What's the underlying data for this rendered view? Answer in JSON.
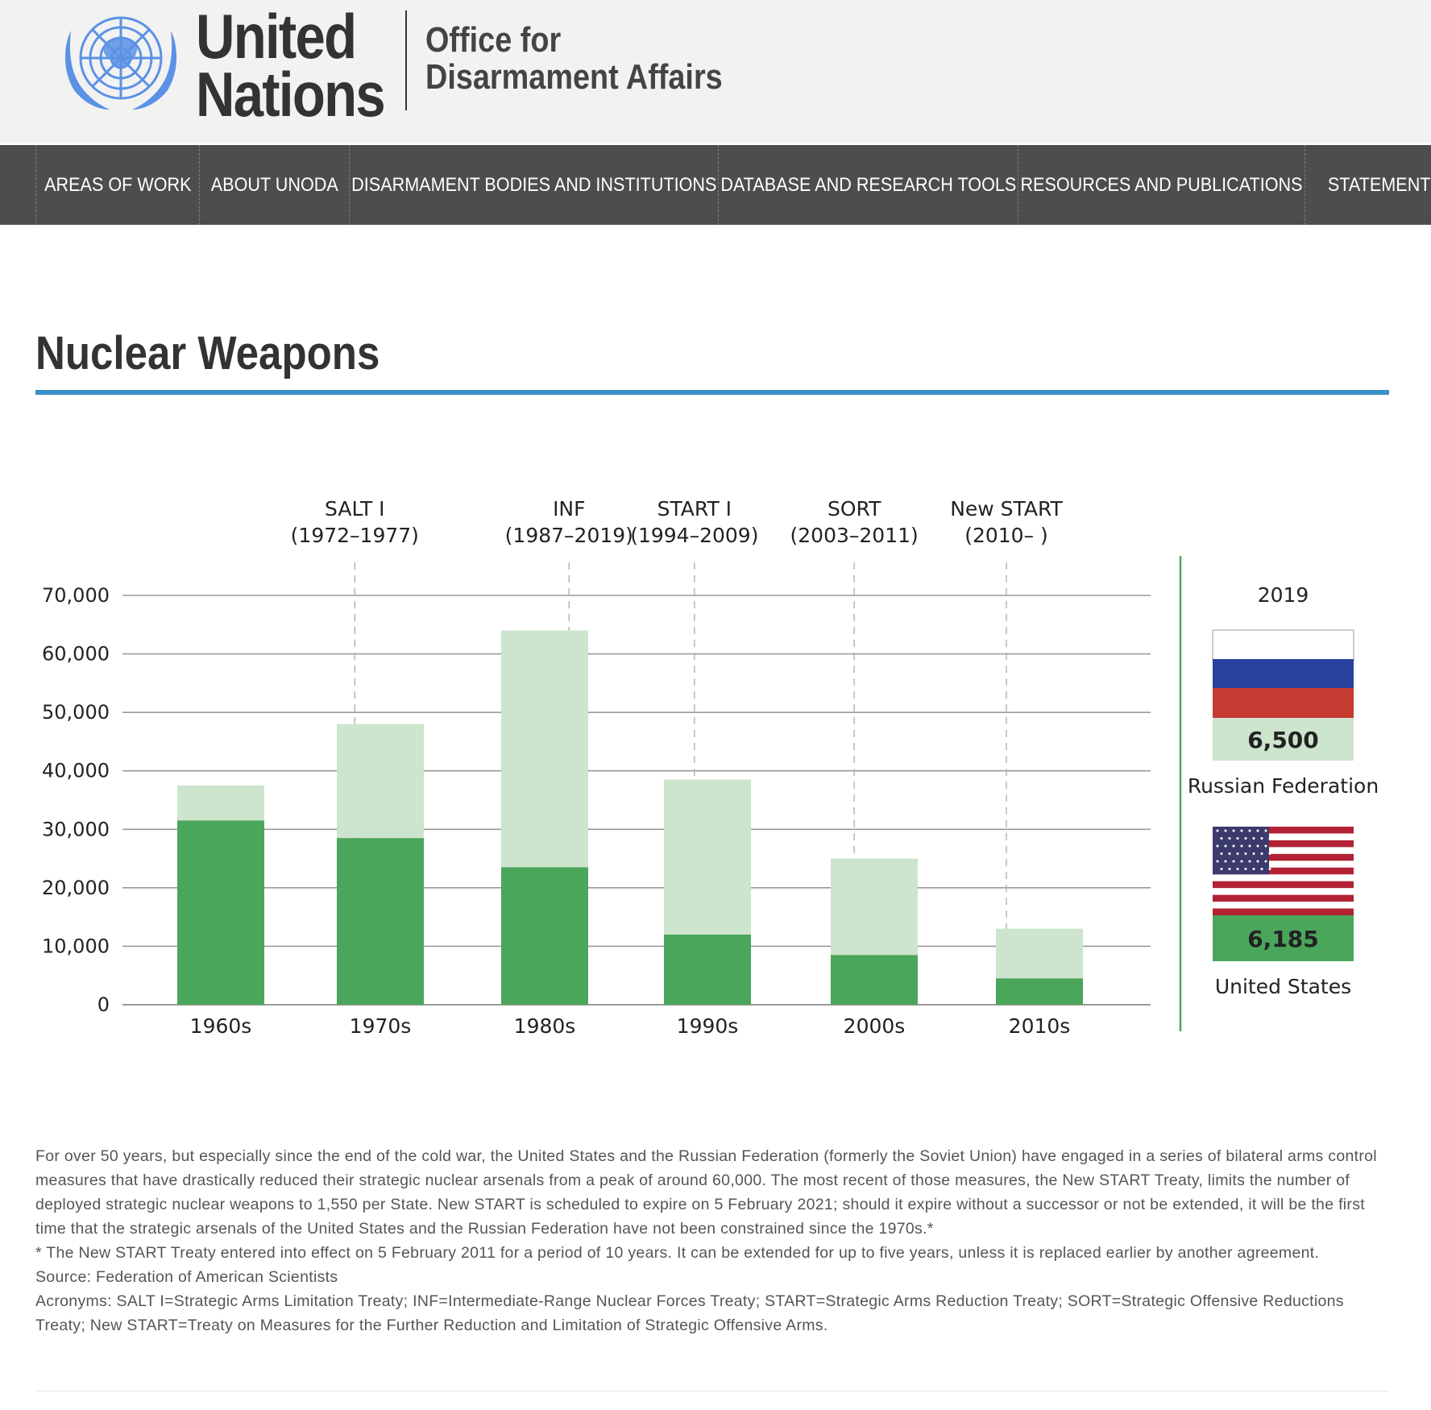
{
  "header": {
    "org_line1": "United",
    "org_line2": "Nations",
    "office_line1": "Office for",
    "office_line2": "Disarmament Affairs"
  },
  "nav": {
    "items": [
      {
        "label": "AREAS OF WORK"
      },
      {
        "label": "ABOUT UNODA"
      },
      {
        "label": "DISARMAMENT BODIES AND INSTITUTIONS"
      },
      {
        "label": "DATABASE AND RESEARCH TOOLS"
      },
      {
        "label": "RESOURCES AND PUBLICATIONS"
      },
      {
        "label": "STATEMENTS"
      }
    ]
  },
  "page": {
    "title": "Nuclear Weapons"
  },
  "colors": {
    "title_rule": "#3a8fc8",
    "dark_green": "#4aa65a",
    "light_green": "#cde4cd",
    "nav_bg": "#4d4d4d"
  },
  "chart_data": {
    "type": "bar",
    "stacked": true,
    "categories": [
      "1960s",
      "1970s",
      "1980s",
      "1990s",
      "2000s",
      "2010s"
    ],
    "series": [
      {
        "values": [
          31500,
          28500,
          23500,
          12000,
          8500,
          4500
        ]
      },
      {
        "values": [
          6000,
          19500,
          40500,
          26500,
          16500,
          8500
        ]
      }
    ],
    "yticks": [
      "70,000",
      "60,000",
      "50,000",
      "40,000",
      "30,000",
      "20,000",
      "10,000",
      "0"
    ],
    "ylim": [
      0,
      70000
    ],
    "grid": true,
    "treaties": [
      {
        "name": "SALT  I",
        "years": "(1972–1977)",
        "position": 1.84
      },
      {
        "name": "INF",
        "years": "(1987–2019)",
        "position": 3.15
      },
      {
        "name": "START I",
        "years": "(1994–2009)",
        "position": 3.92
      },
      {
        "name": "SORT",
        "years": "(2003–2011)",
        "position": 4.88
      },
      {
        "name": "New START",
        "years": "(2010– )",
        "position": 5.8
      }
    ],
    "panel_2019": {
      "year": "2019",
      "russia": {
        "value": "6,500",
        "name": "Russian Federation"
      },
      "usa": {
        "value": "6,185",
        "name": "United States"
      }
    }
  },
  "body": {
    "paragraph": "For over 50 years, but especially since the end of the cold war, the United States and the Russian Federation (formerly the Soviet Union) have engaged in a series of bilateral arms control measures that have drastically reduced their strategic nuclear arsenals from a peak of around 60,000. The most recent of those measures, the New START Treaty, limits the number of deployed strategic nuclear weapons to 1,550 per State. New START is scheduled to expire on 5 February 2021; should it expire without a successor or not be extended, it will be the first time that the strategic arsenals of the United States and the Russian Federation have not been constrained since the 1970s.*",
    "footnote": "* The New START Treaty entered into effect on 5 February 2011 for a period of 10 years. It can be extended for up to five years, unless it is replaced earlier by another agreement.",
    "source": "Source: Federation of American Scientists",
    "acronyms": "Acronyms: SALT I=Strategic Arms Limitation Treaty; INF=Intermediate-Range Nuclear Forces Treaty; START=Strategic Arms Reduction Treaty; SORT=Strategic Offensive Reductions Treaty; New START=Treaty on Measures for the Further Reduction and Limitation of Strategic Offensive Arms."
  }
}
